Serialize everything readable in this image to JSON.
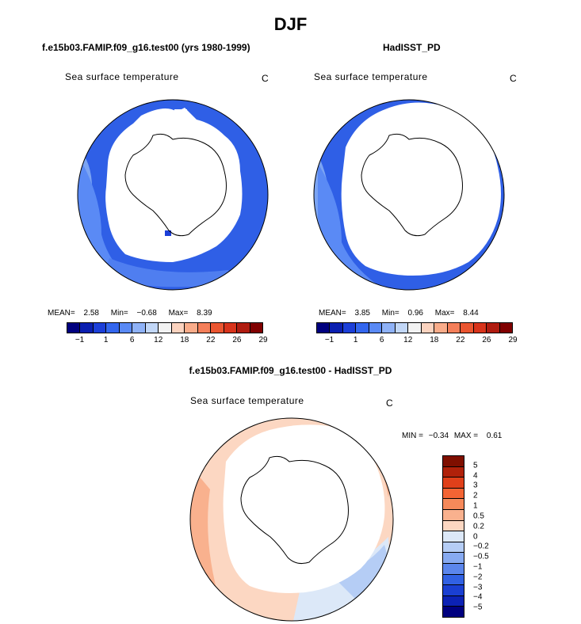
{
  "title": "DJF",
  "panels": [
    {
      "title": "f.e15b03.FAMIP.f09_g16.test00 (yrs 1980-1999)",
      "variable": "Sea surface temperature",
      "unit": "C",
      "mean_label": "MEAN=",
      "mean": "2.58",
      "min_label": "Min=",
      "min": "-0.68",
      "max_label": "Max=",
      "max": "8.39"
    },
    {
      "title": "HadISST_PD",
      "variable": "Sea surface temperature",
      "unit": "C",
      "mean_label": "MEAN=",
      "mean": "3.85",
      "min_label": "Min=",
      "min": "0.96",
      "max_label": "Max=",
      "max": "8.44"
    }
  ],
  "diff_panel": {
    "title": "f.e15b03.FAMIP.f09_g16.test00 - HadISST_PD",
    "variable": "Sea surface temperature",
    "unit": "C",
    "min_label": "MIN =",
    "min": "-0.34",
    "max_label": "MAX =",
    "max": "0.61"
  },
  "sst_colorbar": {
    "colors": [
      "#00007f",
      "#0a1fb0",
      "#1c3fd8",
      "#3366ee",
      "#5a8af5",
      "#8fb2f7",
      "#c2d7f7",
      "#f2f2f2",
      "#fbd3bf",
      "#f9ac8a",
      "#f47f5a",
      "#ea5530",
      "#d8331b",
      "#b01c10",
      "#800000"
    ],
    "tick_labels": [
      "-1",
      "1",
      "6",
      "12",
      "18",
      "22",
      "26",
      "29"
    ]
  },
  "diff_colorbar": {
    "colors": [
      "#7f0f00",
      "#b0210a",
      "#e0401a",
      "#f36434",
      "#f6895a",
      "#f9b18e",
      "#fcd7c2",
      "#dce8f8",
      "#b5cdf5",
      "#87aaf1",
      "#5b86ec",
      "#3161e3",
      "#1a3fd2",
      "#0c22b5",
      "#00007f"
    ],
    "tick_labels": [
      "5",
      "4",
      "3",
      "2",
      "1",
      "0.5",
      "0.2",
      "0",
      "-0.2",
      "-0.5",
      "-1",
      "-2",
      "-3",
      "-4",
      "-5"
    ]
  },
  "colors": {
    "ocean_deep": "#2f5fe6",
    "ocean_mid": "#4f7ef0",
    "ocean_light": "#7ba4f3",
    "ice": "#ffffff",
    "coast": "#000000"
  }
}
